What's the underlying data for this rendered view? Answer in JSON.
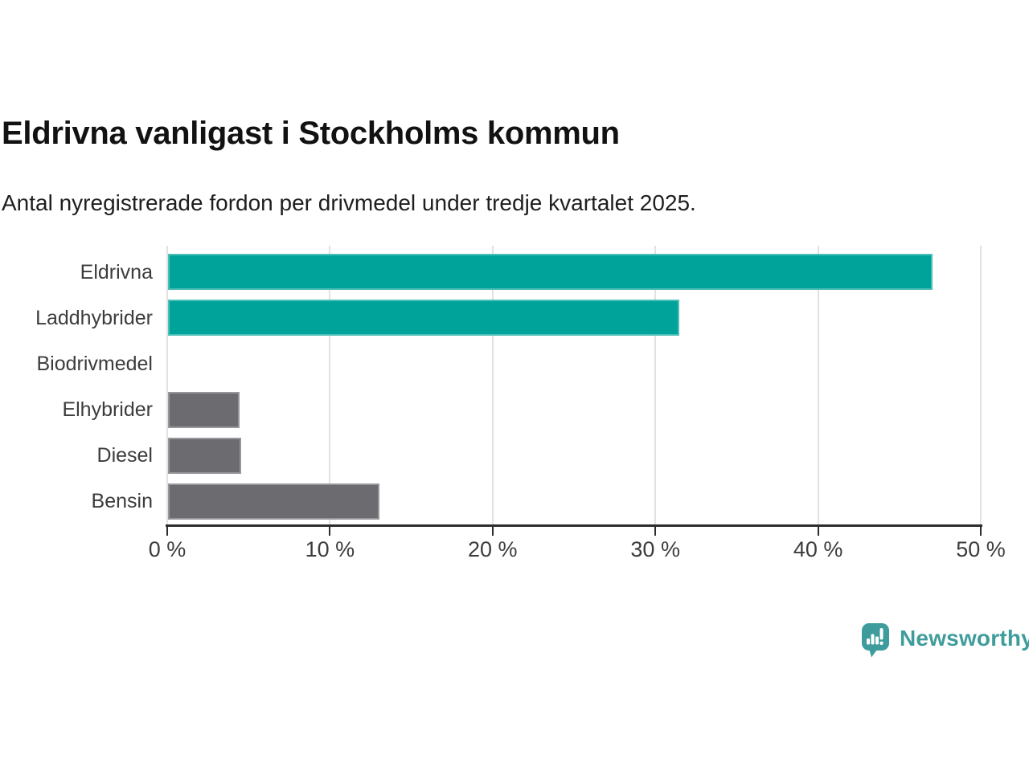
{
  "title": "Eldrivna vanligast i Stockholms kommun",
  "subtitle": "Antal nyregistrerade fordon per drivmedel under tredje kvartalet 2025.",
  "chart_data": {
    "type": "bar",
    "orientation": "horizontal",
    "categories": [
      "Eldrivna",
      "Laddhybrider",
      "Biodrivmedel",
      "Elhybrider",
      "Diesel",
      "Bensin"
    ],
    "values": [
      47.0,
      31.4,
      0,
      4.4,
      4.5,
      13.0
    ],
    "unit": "%",
    "xlim": [
      0,
      50
    ],
    "x_ticks": [
      0,
      10,
      20,
      30,
      40,
      50
    ],
    "x_tick_labels": [
      "0 %",
      "10 %",
      "20 %",
      "30 %",
      "40 %",
      "50 %"
    ],
    "bar_colors": [
      "#00a39a",
      "#00a39a",
      "#6b6b70",
      "#6b6b70",
      "#6b6b70",
      "#6b6b70"
    ],
    "grid": true,
    "legend": "none"
  },
  "colors": {
    "teal_bar": "#00a39a",
    "gray_bar": "#6b6b70",
    "gridline": "#e2e2e2",
    "axis": "#2d2d2d",
    "text": "#3c3c3c",
    "logo_teal": "#3f9c9c"
  },
  "branding": {
    "logo_text": "Newsworthy",
    "logo_icon": "bar-chart-speech-bubble-icon"
  }
}
